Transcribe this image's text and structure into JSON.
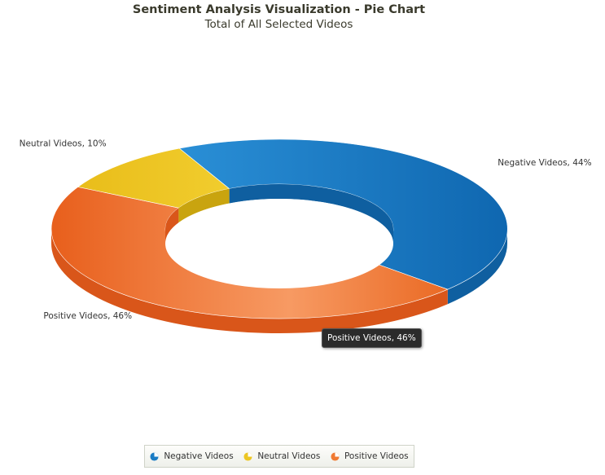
{
  "chart_data": {
    "type": "pie",
    "variant": "3d-doughnut",
    "title": "Sentiment Analysis Visualization - Pie Chart",
    "subtitle": "Total of All Selected Videos",
    "slices": [
      {
        "name": "Negative Videos",
        "value": 44,
        "label": "Negative Videos, 44%",
        "color": "#1b7cc4",
        "dark": "#0f5fa0"
      },
      {
        "name": "Positive Videos",
        "value": 46,
        "label": "Positive Videos, 46%",
        "color": "#f07a32",
        "dark": "#d9561a"
      },
      {
        "name": "Neutral Videos",
        "value": 10,
        "label": "Neutral Videos, 10%",
        "color": "#ecc623",
        "dark": "#c9a40f"
      }
    ],
    "legend": [
      "Negative Videos",
      "Neutral Videos",
      "Positive Videos"
    ],
    "legend_position": "bottom-center",
    "tooltip": "Positive Videos, 46%"
  }
}
